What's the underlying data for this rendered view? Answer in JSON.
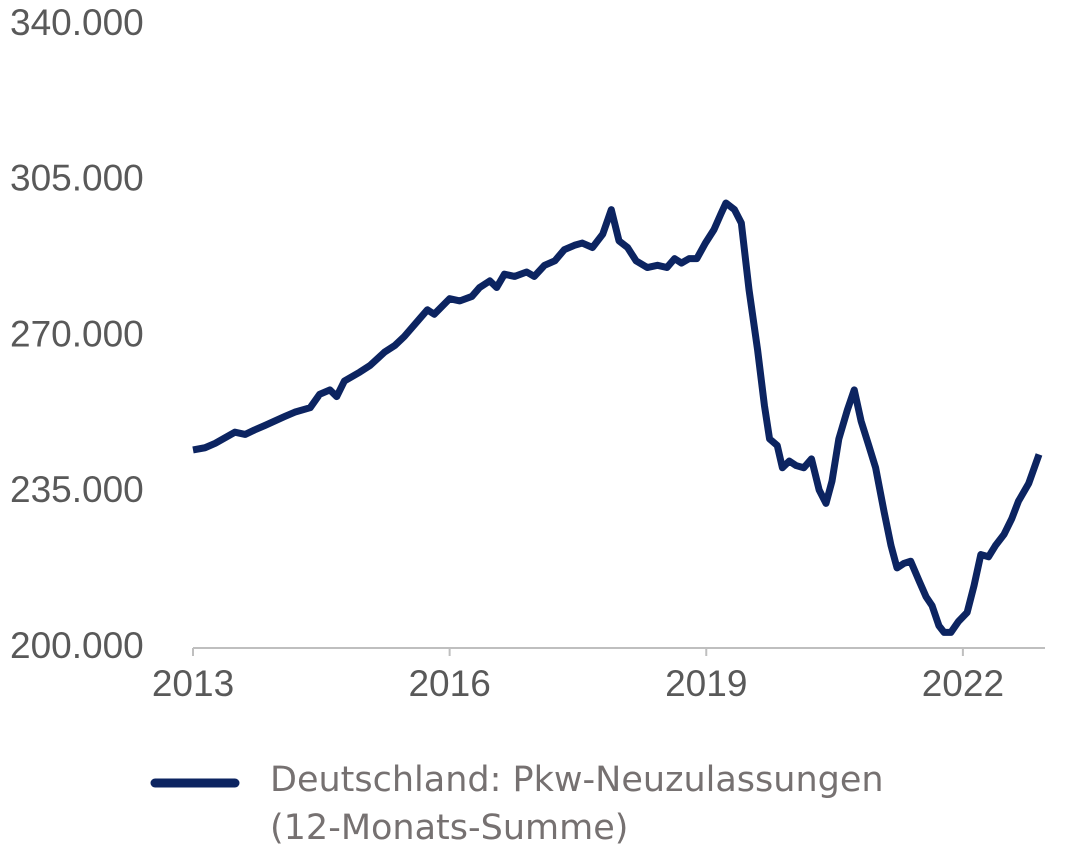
{
  "chart_data": {
    "type": "line",
    "ylim": [
      200000,
      340000
    ],
    "yticks": [
      {
        "value": 200000,
        "label": "200.000"
      },
      {
        "value": 235000,
        "label": "235.000"
      },
      {
        "value": 270000,
        "label": "270.000"
      },
      {
        "value": 305000,
        "label": "305.000"
      },
      {
        "value": 340000,
        "label": "340.000"
      }
    ],
    "xlim": [
      2013,
      2022.96
    ],
    "xticks": [
      2013,
      2016,
      2019,
      2022
    ],
    "x": [
      2013.0,
      2013.14,
      2013.26,
      2013.49,
      2013.61,
      2013.72,
      2013.84,
      2014.07,
      2014.19,
      2014.37,
      2014.48,
      2014.6,
      2014.68,
      2014.77,
      2014.95,
      2015.07,
      2015.24,
      2015.36,
      2015.47,
      2015.65,
      2015.74,
      2015.82,
      2016.0,
      2016.12,
      2016.26,
      2016.35,
      2016.47,
      2016.55,
      2016.64,
      2016.76,
      2016.9,
      2016.99,
      2017.11,
      2017.23,
      2017.34,
      2017.46,
      2017.55,
      2017.67,
      2017.79,
      2017.89,
      2017.98,
      2018.08,
      2018.18,
      2018.31,
      2018.43,
      2018.54,
      2018.63,
      2018.71,
      2018.8,
      2018.89,
      2018.99,
      2019.09,
      2019.17,
      2019.23,
      2019.33,
      2019.41,
      2019.5,
      2019.6,
      2019.68,
      2019.74,
      2019.83,
      2019.89,
      2019.97,
      2020.05,
      2020.14,
      2020.23,
      2020.32,
      2020.4,
      2020.47,
      2020.55,
      2020.65,
      2020.73,
      2020.81,
      2020.9,
      2020.98,
      2021.08,
      2021.16,
      2021.23,
      2021.31,
      2021.39,
      2021.49,
      2021.57,
      2021.64,
      2021.72,
      2021.78,
      2021.86,
      2021.95,
      2022.05,
      2022.13,
      2022.21,
      2022.3,
      2022.38,
      2022.48,
      2022.57,
      2022.65,
      2022.77,
      2022.89
    ],
    "series": [
      {
        "name": "Deutschland: Pkw-Neuzulassungen (12-Monats-Summe)",
        "color": "#0c2461",
        "values": [
          244500,
          245000,
          246000,
          248500,
          248000,
          249000,
          250000,
          252000,
          253000,
          254000,
          257000,
          258000,
          256500,
          260000,
          262000,
          263500,
          266500,
          268000,
          270000,
          274000,
          276000,
          275000,
          278500,
          278000,
          279000,
          281000,
          282500,
          281000,
          284000,
          283500,
          284500,
          283500,
          286000,
          287000,
          289500,
          290500,
          291000,
          290000,
          293000,
          298500,
          291500,
          290000,
          287000,
          285500,
          286000,
          285500,
          287500,
          286500,
          287500,
          287500,
          291000,
          294000,
          297500,
          300000,
          298500,
          295500,
          280500,
          267000,
          254500,
          247000,
          245500,
          240500,
          242000,
          241000,
          240500,
          242500,
          235500,
          232500,
          237500,
          247000,
          253500,
          258000,
          251000,
          245500,
          240500,
          230500,
          223000,
          218000,
          219000,
          219500,
          215000,
          211500,
          209500,
          205000,
          203500,
          203500,
          206000,
          208000,
          214000,
          221000,
          220500,
          223000,
          225500,
          229000,
          233000,
          237000,
          243500
        ]
      }
    ]
  }
}
